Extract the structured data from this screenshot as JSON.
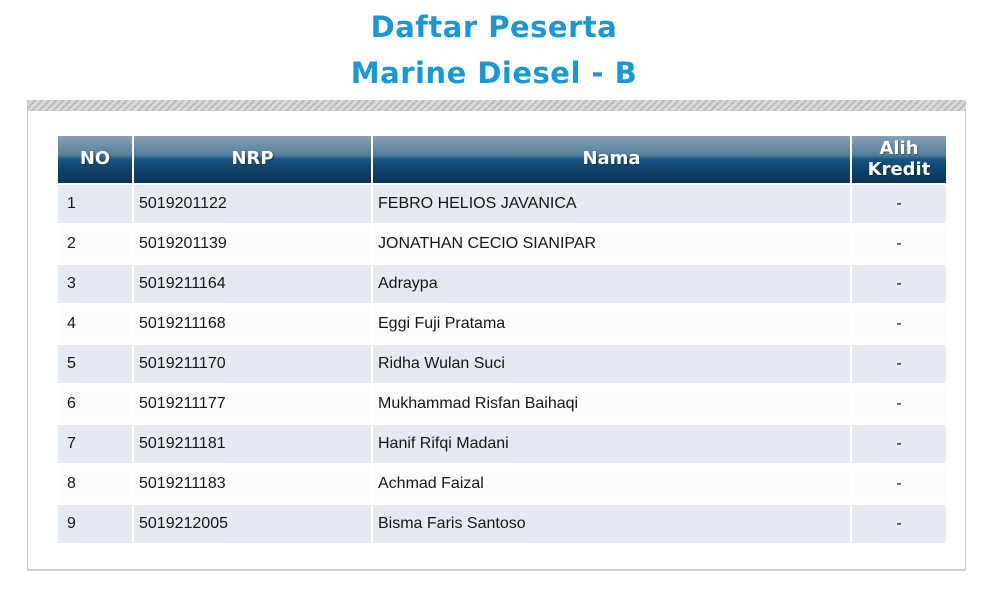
{
  "title": {
    "line1": "Daftar Peserta",
    "line2": "Marine Diesel - B"
  },
  "table": {
    "columns": [
      "NO",
      "NRP",
      "Nama",
      "Alih Kredit"
    ],
    "rows": [
      {
        "no": "1",
        "nrp": "5019201122",
        "nama": "FEBRO HELIOS JAVANICA",
        "alih": "-"
      },
      {
        "no": "2",
        "nrp": "5019201139",
        "nama": "JONATHAN CECIO SIANIPAR",
        "alih": "-"
      },
      {
        "no": "3",
        "nrp": "5019211164",
        "nama": "Adraypa",
        "alih": "-"
      },
      {
        "no": "4",
        "nrp": "5019211168",
        "nama": "Eggi Fuji Pratama",
        "alih": "-"
      },
      {
        "no": "5",
        "nrp": "5019211170",
        "nama": "Ridha Wulan Suci",
        "alih": "-"
      },
      {
        "no": "6",
        "nrp": "5019211177",
        "nama": "Mukhammad Risfan Baihaqi",
        "alih": "-"
      },
      {
        "no": "7",
        "nrp": "5019211181",
        "nama": "Hanif Rifqi Madani",
        "alih": "-"
      },
      {
        "no": "8",
        "nrp": "5019211183",
        "nama": "Achmad Faizal",
        "alih": "-"
      },
      {
        "no": "9",
        "nrp": "5019212005",
        "nama": "Bisma Faris Santoso",
        "alih": "-"
      }
    ]
  },
  "colors": {
    "title": "#1b97d4",
    "header_gradient_top": "#87a1b3",
    "header_gradient_bottom": "#0b3456",
    "row_odd": "#e4eaef",
    "row_even": "#fbfcfe"
  }
}
